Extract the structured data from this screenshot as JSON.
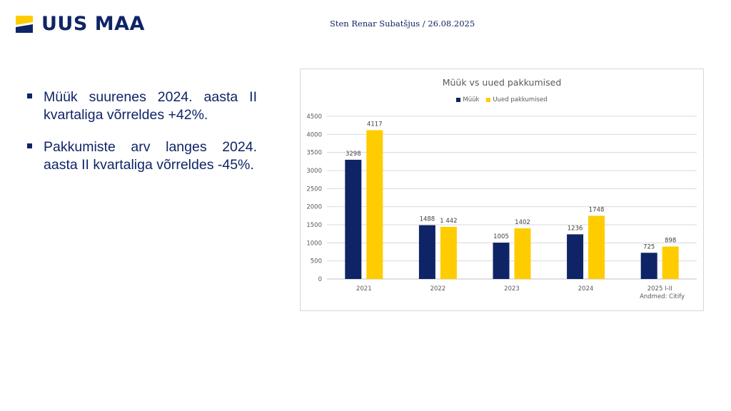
{
  "header": {
    "logo_text": "UUS MAA",
    "author_date": "Sten Renar Subatšjus / 26.08.2025"
  },
  "bullets": [
    "Müük suurenes 2024. aasta II kvartaliga võrreldes +42%.",
    "Pakkumiste arv langes 2024. aasta II kvartaliga võrreldes -45%."
  ],
  "colors": {
    "navy": "#0f2466",
    "yellow": "#ffcc00"
  },
  "chart_data": {
    "type": "bar",
    "title": "Müük vs uued pakkumised",
    "categories": [
      "2021",
      "2022",
      "2023",
      "2024",
      "2025 I-II"
    ],
    "series": [
      {
        "name": "Müük",
        "color": "#0f2466",
        "values": [
          3298,
          1488,
          1005,
          1236,
          725
        ],
        "labels": [
          "3298",
          "1488",
          "1005",
          "1236",
          "725"
        ]
      },
      {
        "name": "Uued pakkumised",
        "color": "#ffcc00",
        "values": [
          4117,
          1442,
          1402,
          1748,
          898
        ],
        "labels": [
          "4117",
          "1 442",
          "1402",
          "1748",
          "898"
        ]
      }
    ],
    "ylim": [
      0,
      4500
    ],
    "yticks": [
      0,
      500,
      1000,
      1500,
      2000,
      2500,
      3000,
      3500,
      4000,
      4500
    ],
    "grid": true,
    "legend": "top-center",
    "source": "Andmed: Citify"
  }
}
